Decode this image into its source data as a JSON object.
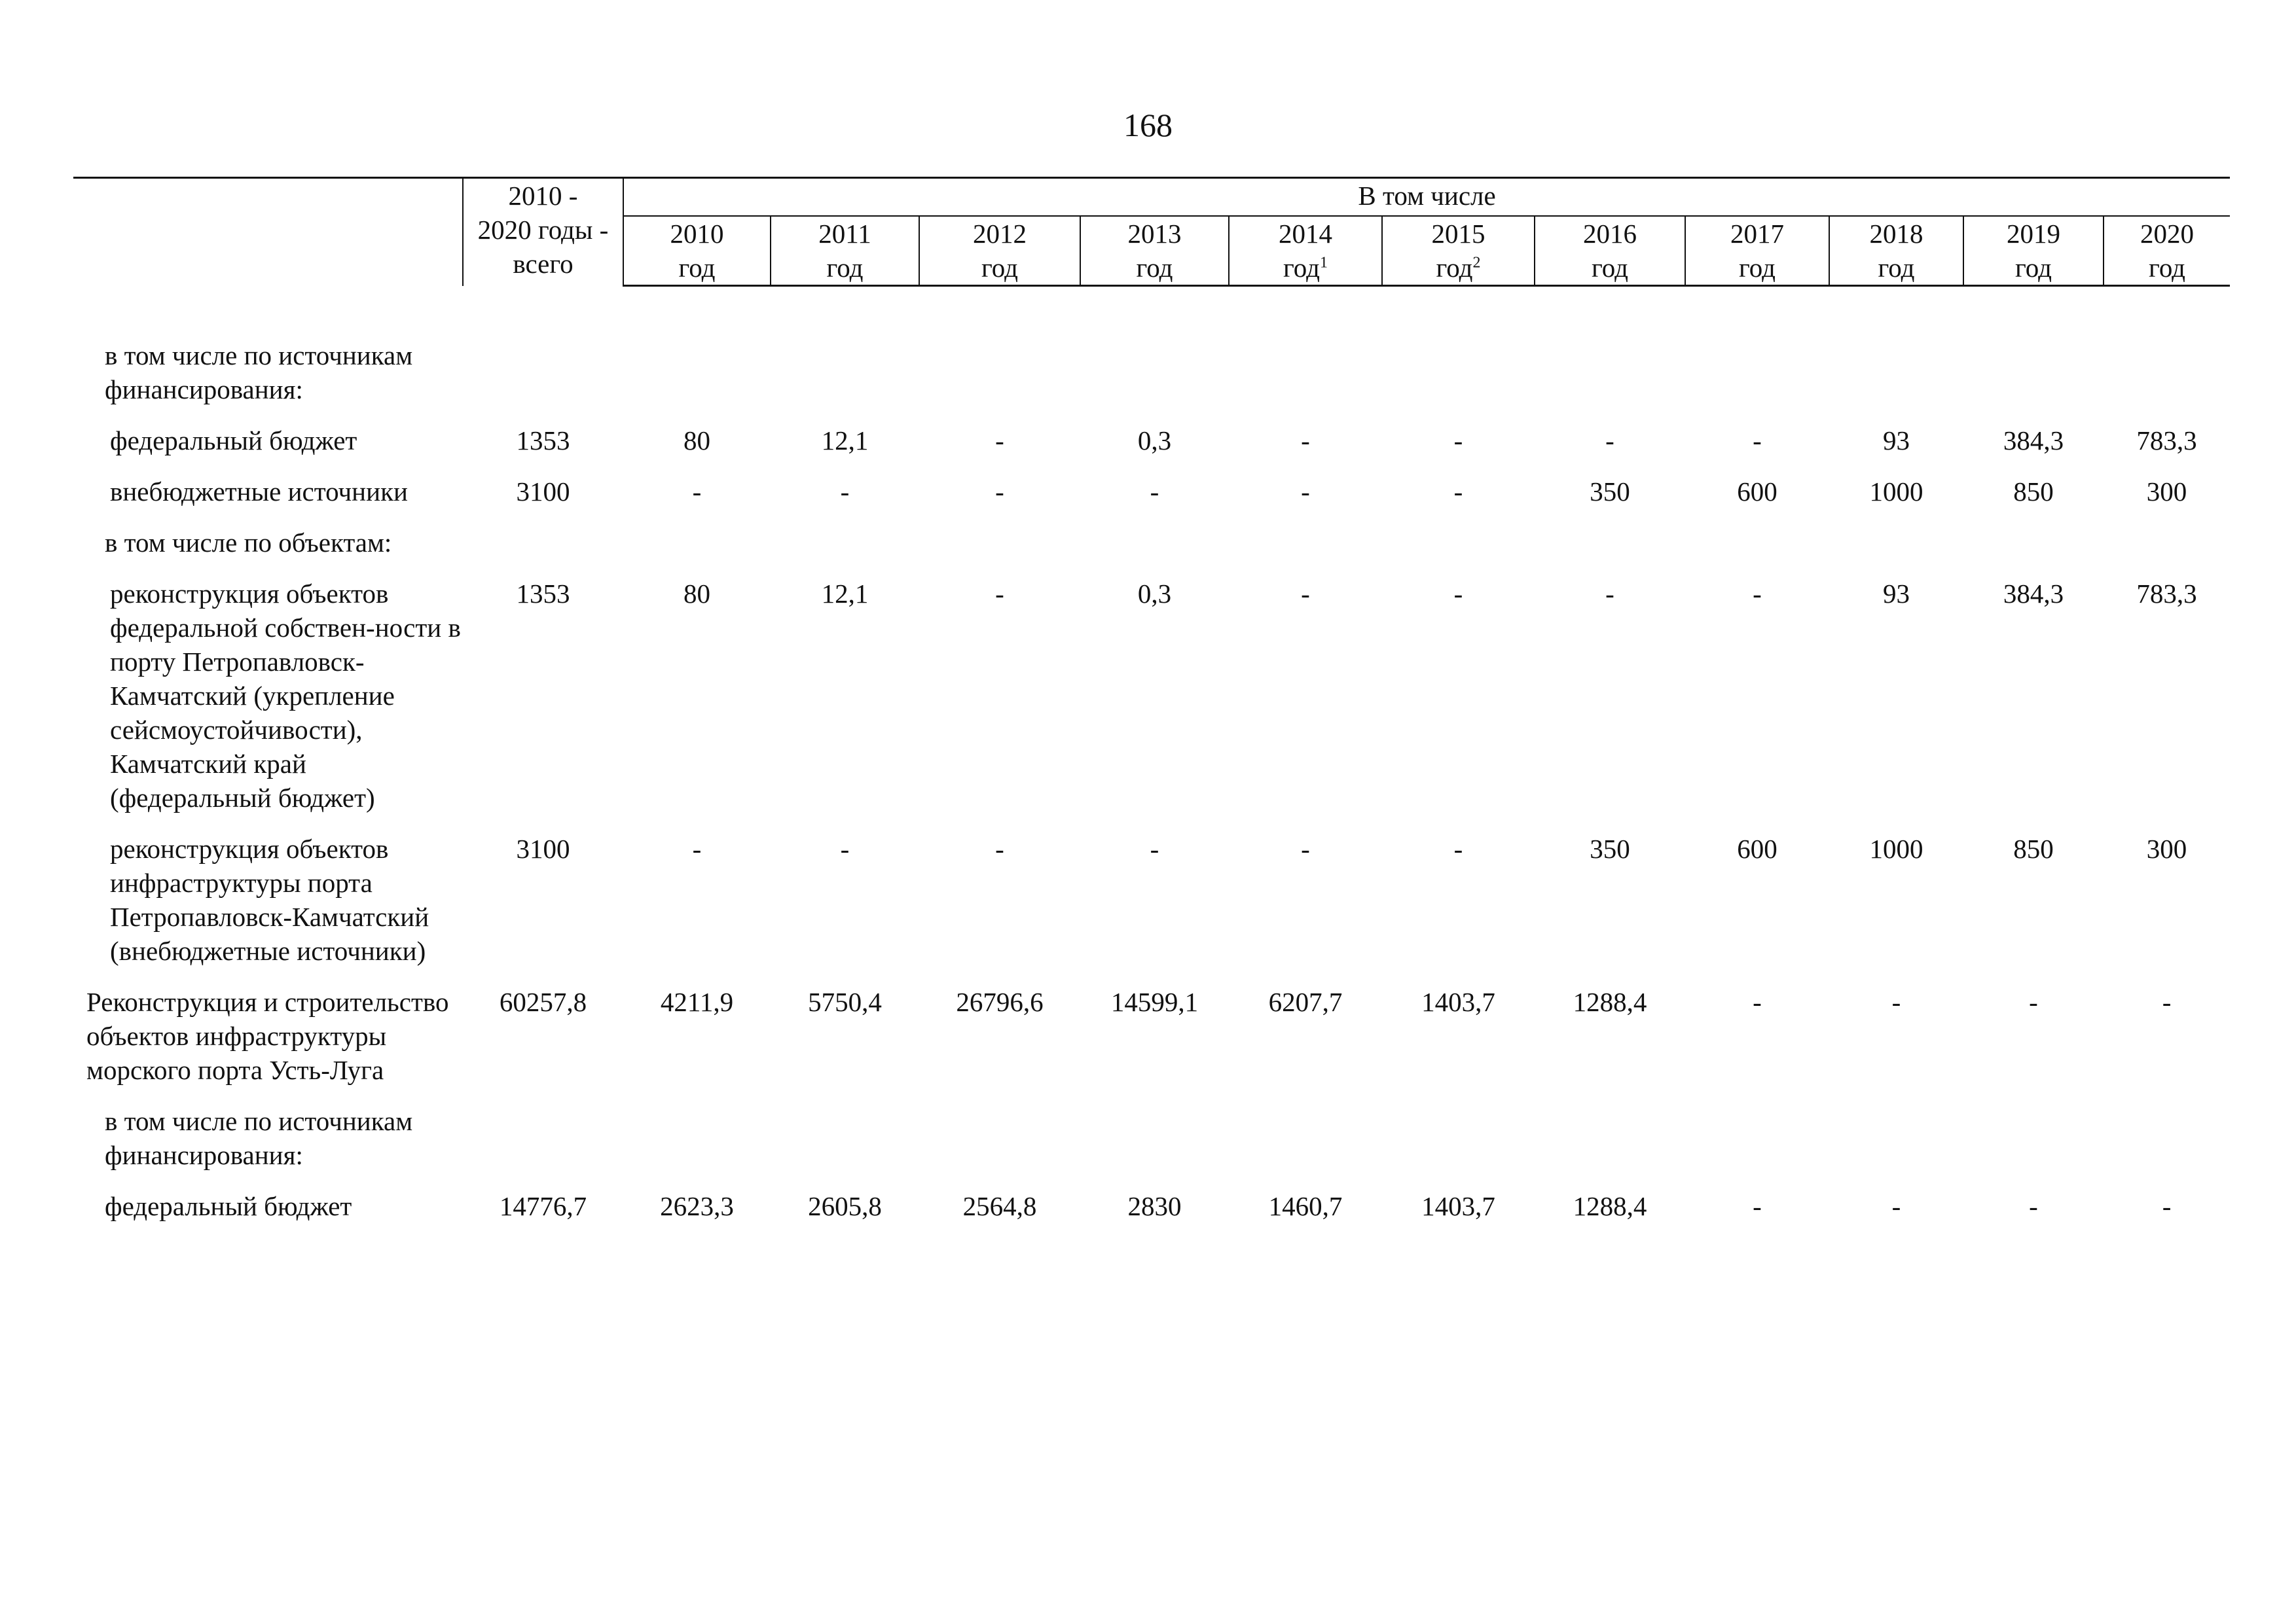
{
  "page_number": "168",
  "header": {
    "total_line1": "2010 -",
    "total_line2": "2020 годы -",
    "total_line3": "всего",
    "including": "В том числе",
    "years": [
      {
        "year": "2010",
        "unit": "год",
        "note": ""
      },
      {
        "year": "2011",
        "unit": "год",
        "note": ""
      },
      {
        "year": "2012",
        "unit": "год",
        "note": ""
      },
      {
        "year": "2013",
        "unit": "год",
        "note": ""
      },
      {
        "year": "2014",
        "unit": "год",
        "note": "1"
      },
      {
        "year": "2015",
        "unit": "год",
        "note": "2"
      },
      {
        "year": "2016",
        "unit": "год",
        "note": ""
      },
      {
        "year": "2017",
        "unit": "год",
        "note": ""
      },
      {
        "year": "2018",
        "unit": "год",
        "note": ""
      },
      {
        "year": "2019",
        "unit": "год",
        "note": ""
      },
      {
        "year": "2020",
        "unit": "год",
        "note": ""
      }
    ]
  },
  "rows": [
    {
      "name": "в том числе по источникам финансирования:",
      "total": "",
      "values": [
        "",
        "",
        "",
        "",
        "",
        "",
        "",
        "",
        "",
        "",
        ""
      ]
    },
    {
      "name": "федеральный бюджет",
      "total": "1353",
      "values": [
        "80",
        "12,1",
        "-",
        "0,3",
        "-",
        "-",
        "-",
        "-",
        "93",
        "384,3",
        "783,3"
      ]
    },
    {
      "name": "внебюджетные источники",
      "total": "3100",
      "values": [
        "-",
        "-",
        "-",
        "-",
        "-",
        "-",
        "350",
        "600",
        "1000",
        "850",
        "300"
      ]
    },
    {
      "name": "в том числе по объектам:",
      "total": "",
      "values": [
        "",
        "",
        "",
        "",
        "",
        "",
        "",
        "",
        "",
        "",
        ""
      ]
    },
    {
      "name": "реконструкция объектов федеральной собствен-ности в порту Петропавловск-Камчатский (укрепление сейсмоустойчивости), Камчатский край (федеральный бюджет)",
      "total": "1353",
      "values": [
        "80",
        "12,1",
        "-",
        "0,3",
        "-",
        "-",
        "-",
        "-",
        "93",
        "384,3",
        "783,3"
      ]
    },
    {
      "name": "реконструкция объектов инфраструктуры порта Петропавловск-Камчатский (внебюджетные источники)",
      "total": "3100",
      "values": [
        "-",
        "-",
        "-",
        "-",
        "-",
        "-",
        "350",
        "600",
        "1000",
        "850",
        "300"
      ]
    },
    {
      "name": "Реконструкция и строительство объектов инфраструктуры морского порта Усть-Луга",
      "total": "60257,8",
      "values": [
        "4211,9",
        "5750,4",
        "26796,6",
        "14599,1",
        "6207,7",
        "1403,7",
        "1288,4",
        "-",
        "-",
        "-",
        "-"
      ]
    },
    {
      "name": "в том числе по источникам финансирования:",
      "total": "",
      "values": [
        "",
        "",
        "",
        "",
        "",
        "",
        "",
        "",
        "",
        "",
        ""
      ]
    },
    {
      "name": "федеральный бюджет",
      "total": "14776,7",
      "values": [
        "2623,3",
        "2605,8",
        "2564,8",
        "2830",
        "1460,7",
        "1403,7",
        "1288,4",
        "-",
        "-",
        "-",
        "-"
      ]
    }
  ]
}
